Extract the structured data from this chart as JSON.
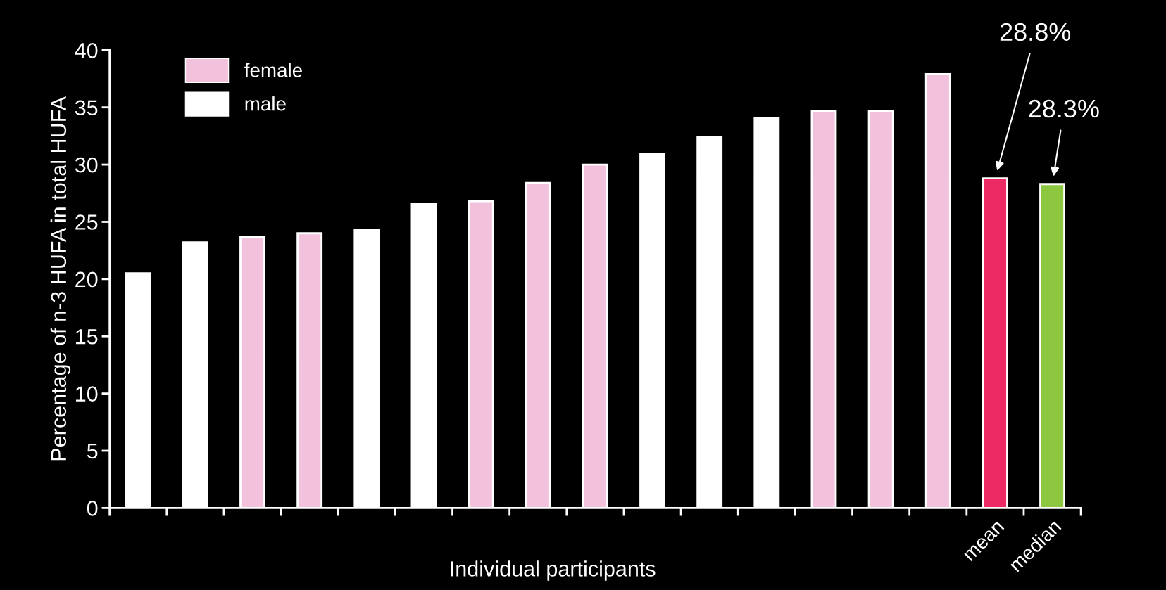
{
  "chart_data": {
    "type": "bar",
    "categories": [
      null,
      null,
      null,
      null,
      null,
      null,
      null,
      null,
      null,
      null,
      null,
      null,
      null,
      null,
      null,
      "mean",
      "median"
    ],
    "series": [
      {
        "name": "female",
        "color": "#f2c1dc",
        "values": [
          null,
          null,
          23.7,
          24.0,
          null,
          null,
          26.8,
          28.4,
          30.0,
          null,
          null,
          null,
          34.7,
          34.7,
          37.9,
          null,
          null
        ]
      },
      {
        "name": "male",
        "color": "#ffffff",
        "values": [
          20.5,
          23.2,
          null,
          null,
          24.3,
          26.6,
          null,
          null,
          null,
          30.9,
          32.4,
          34.1,
          null,
          null,
          null,
          null,
          null
        ]
      },
      {
        "colors": [
          null,
          null,
          null,
          null,
          null,
          null,
          null,
          null,
          null,
          null,
          null,
          null,
          null,
          null,
          null,
          "#ec2a64",
          "#8dc63f"
        ],
        "values": [
          null,
          null,
          null,
          null,
          null,
          null,
          null,
          null,
          null,
          null,
          null,
          null,
          null,
          null,
          null,
          28.8,
          28.3
        ]
      }
    ],
    "ylim": [
      0,
      40
    ],
    "yticks": [
      0,
      5,
      10,
      15,
      20,
      25,
      30,
      35,
      40
    ],
    "xlabel": "Individual participants",
    "ylabel": "Percentage of n-3 HUFA in total HUFA",
    "annotations": [
      "28.8%",
      "28.3%"
    ],
    "legend": "top left",
    "grid": false
  }
}
